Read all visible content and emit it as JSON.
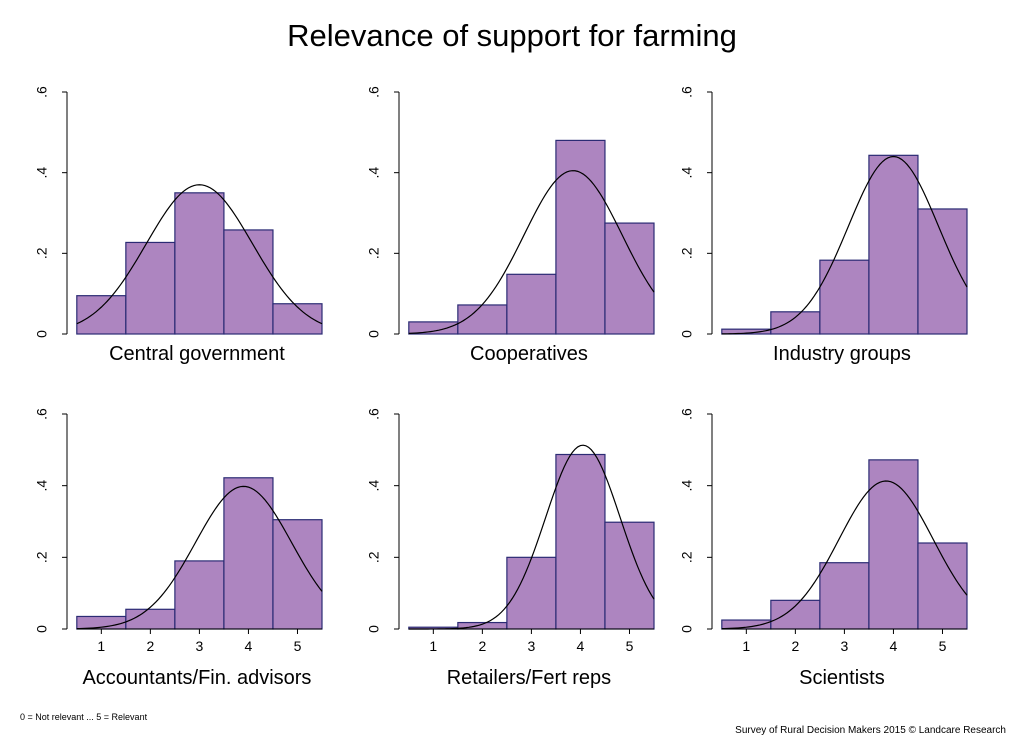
{
  "title": "Relevance of support for farming",
  "footnote_left": "0 = Not relevant ... 5 = Relevant",
  "footnote_right": "Survey of Rural Decision Makers 2015 © Landcare Research",
  "style": {
    "bar_fill": "#ad85c0",
    "bar_stroke": "#2b2b74",
    "curve_color": "#000000"
  },
  "chart_data": [
    {
      "type": "bar",
      "panel_label": "Central government",
      "categories": [
        1,
        2,
        3,
        4,
        5
      ],
      "values": [
        0.095,
        0.227,
        0.35,
        0.258,
        0.075
      ],
      "normal_curve": {
        "mean": 3.0,
        "sd": 1.08,
        "peak": 0.37
      },
      "ylim": [
        0,
        0.6
      ],
      "yticks": [
        "0",
        ".2",
        ".4",
        ".6"
      ],
      "show_xticks": false
    },
    {
      "type": "bar",
      "panel_label": "Cooperatives",
      "categories": [
        1,
        2,
        3,
        4,
        5
      ],
      "values": [
        0.03,
        0.072,
        0.148,
        0.48,
        0.275
      ],
      "normal_curve": {
        "mean": 3.85,
        "sd": 1.0,
        "peak": 0.405
      },
      "ylim": [
        0,
        0.6
      ],
      "yticks": [
        "0",
        ".2",
        ".4",
        ".6"
      ],
      "show_xticks": false
    },
    {
      "type": "bar",
      "panel_label": "Industry groups",
      "categories": [
        1,
        2,
        3,
        4,
        5
      ],
      "values": [
        0.012,
        0.055,
        0.183,
        0.443,
        0.31
      ],
      "normal_curve": {
        "mean": 4.0,
        "sd": 0.92,
        "peak": 0.44
      },
      "ylim": [
        0,
        0.6
      ],
      "yticks": [
        "0",
        ".2",
        ".4",
        ".6"
      ],
      "show_xticks": false
    },
    {
      "type": "bar",
      "panel_label": "Accountants/Fin. advisors",
      "categories": [
        1,
        2,
        3,
        4,
        5
      ],
      "values": [
        0.035,
        0.055,
        0.19,
        0.422,
        0.305
      ],
      "normal_curve": {
        "mean": 3.9,
        "sd": 0.98,
        "peak": 0.398
      },
      "ylim": [
        0,
        0.6
      ],
      "yticks": [
        "0",
        ".2",
        ".4",
        ".6"
      ],
      "xticks": [
        "1",
        "2",
        "3",
        "4",
        "5"
      ],
      "show_xticks": true
    },
    {
      "type": "bar",
      "panel_label": "Retailers/Fert reps",
      "categories": [
        1,
        2,
        3,
        4,
        5
      ],
      "values": [
        0.005,
        0.018,
        0.2,
        0.487,
        0.298
      ],
      "normal_curve": {
        "mean": 4.05,
        "sd": 0.76,
        "peak": 0.513
      },
      "ylim": [
        0,
        0.6
      ],
      "yticks": [
        "0",
        ".2",
        ".4",
        ".6"
      ],
      "xticks": [
        "1",
        "2",
        "3",
        "4",
        "5"
      ],
      "show_xticks": true
    },
    {
      "type": "bar",
      "panel_label": "Scientists",
      "categories": [
        1,
        2,
        3,
        4,
        5
      ],
      "values": [
        0.025,
        0.08,
        0.185,
        0.472,
        0.24
      ],
      "normal_curve": {
        "mean": 3.85,
        "sd": 0.96,
        "peak": 0.413
      },
      "ylim": [
        0,
        0.6
      ],
      "yticks": [
        "0",
        ".2",
        ".4",
        ".6"
      ],
      "xticks": [
        "1",
        "2",
        "3",
        "4",
        "5"
      ],
      "show_xticks": true
    }
  ]
}
